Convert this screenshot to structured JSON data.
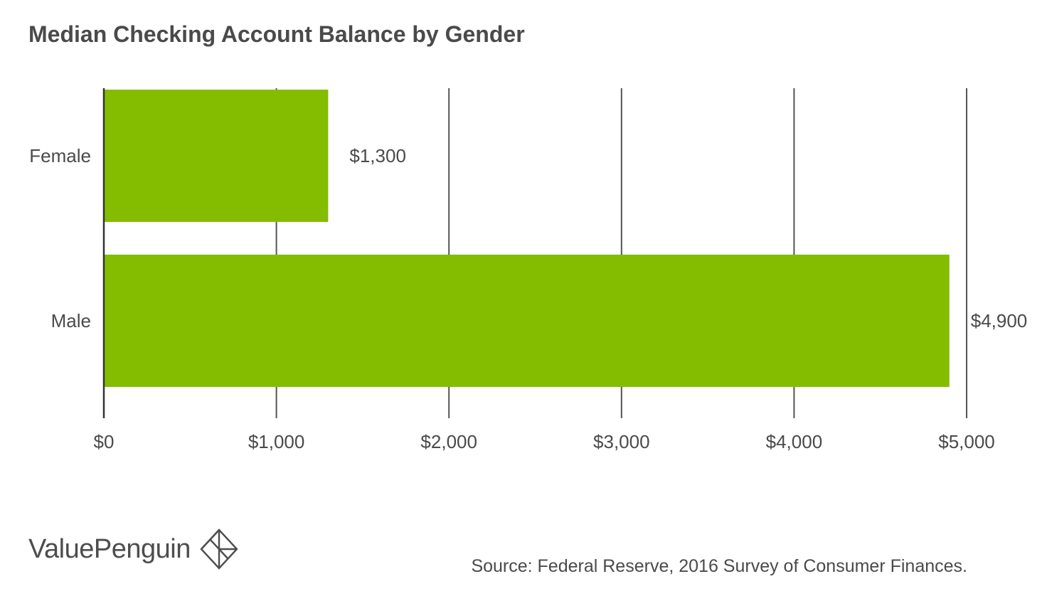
{
  "chart_data": {
    "type": "bar",
    "orientation": "horizontal",
    "title": "Median Checking Account Balance by Gender",
    "categories": [
      "Female",
      "Male"
    ],
    "values": [
      1300,
      4900
    ],
    "data_labels": [
      "$1,300",
      "$4,900"
    ],
    "xlim": [
      0,
      5000
    ],
    "xticks": [
      0,
      1000,
      2000,
      3000,
      4000,
      5000
    ],
    "xtick_labels": [
      "$0",
      "$1,000",
      "$2,000",
      "$3,000",
      "$4,000",
      "$5,000"
    ],
    "xlabel": "",
    "ylabel": "",
    "grid": true,
    "bar_color": "#84bc00",
    "grid_color": "#555555"
  },
  "footer": {
    "brand": "ValuePenguin",
    "brand_icon": "diamond-logo-icon",
    "source": "Source: Federal Reserve, 2016 Survey of Consumer Finances."
  }
}
